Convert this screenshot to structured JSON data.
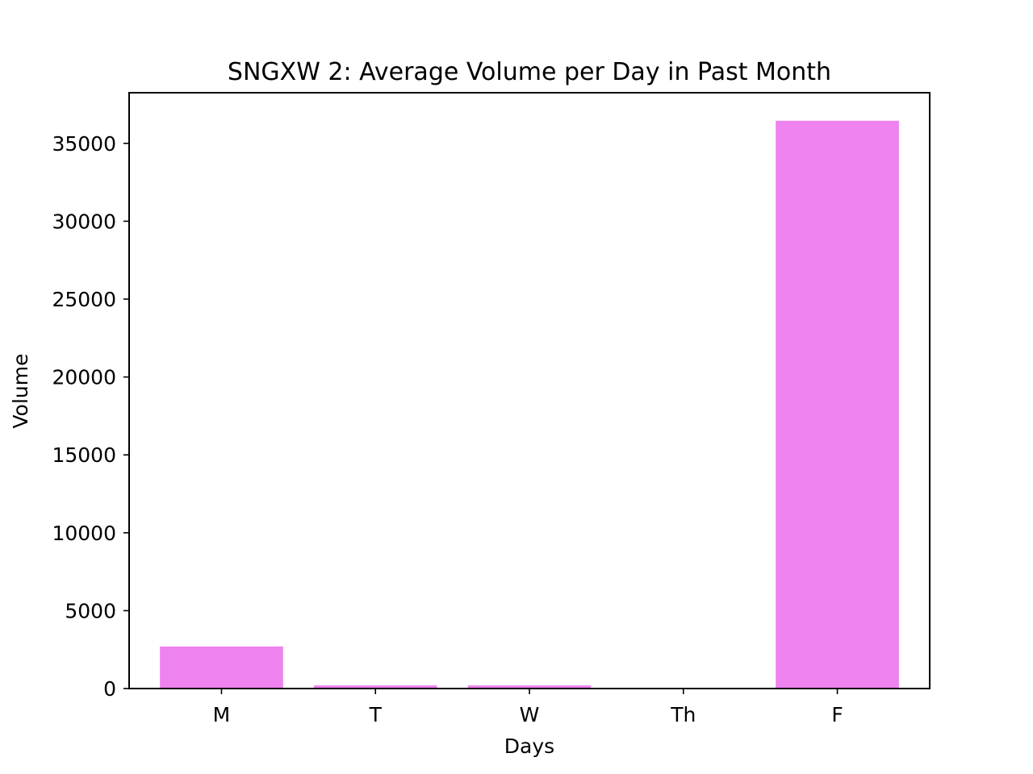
{
  "chart_data": {
    "type": "bar",
    "title": "SNGXW 2: Average Volume per Day in Past Month",
    "xlabel": "Days",
    "ylabel": "Volume",
    "categories": [
      "M",
      "T",
      "W",
      "Th",
      "F"
    ],
    "values": [
      2700,
      200,
      200,
      0,
      36450
    ],
    "ylim": [
      0,
      38250
    ],
    "yticks": [
      0,
      5000,
      10000,
      15000,
      20000,
      25000,
      30000,
      35000
    ],
    "grid": false,
    "bar_color": "#ee82ee"
  }
}
